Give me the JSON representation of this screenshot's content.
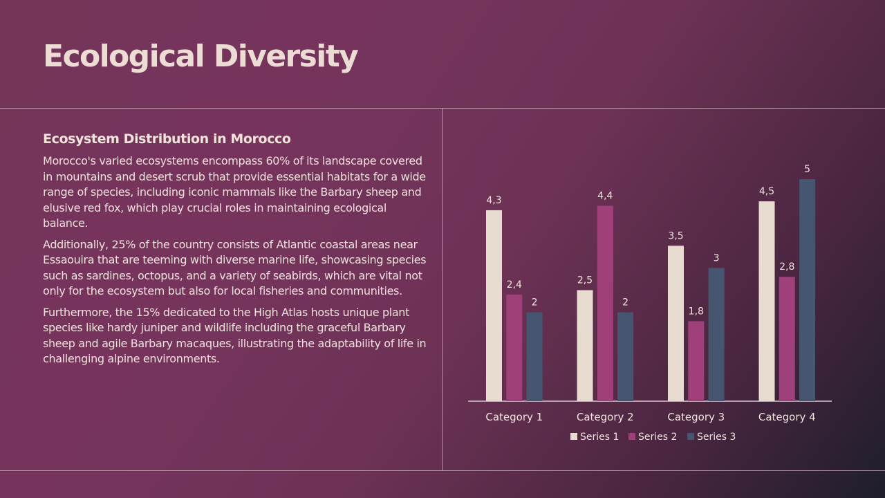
{
  "title": "Ecological Diversity",
  "content": {
    "heading": "Ecosystem Distribution in Morocco",
    "paragraphs": [
      "Morocco's varied ecosystems encompass 60% of its landscape covered in mountains and desert scrub that provide essential habitats for a wide range of species, including iconic mammals like the Barbary sheep and elusive red fox, which play crucial roles in maintaining ecological balance.",
      "Additionally, 25% of the country consists of Atlantic coastal areas near Essaouira that are teeming with diverse marine life, showcasing species such as sardines, octopus, and a variety of seabirds, which are vital not only for the ecosystem but also for local fisheries and communities.",
      "Furthermore, the 15% dedicated to the High Atlas hosts unique plant species like hardy juniper and wildlife including the graceful Barbary sheep and agile Barbary macaques, illustrating the adaptability of life in challenging alpine environments."
    ]
  },
  "chart_data": {
    "type": "bar",
    "categories": [
      "Category 1",
      "Category 2",
      "Category 3",
      "Category 4"
    ],
    "series": [
      {
        "name": "Series 1",
        "values": [
          4.3,
          2.5,
          3.5,
          4.5
        ],
        "labels": [
          "4,3",
          "2,5",
          "3,5",
          "4,5"
        ],
        "color": "#e8dcd0"
      },
      {
        "name": "Series 2",
        "values": [
          2.4,
          4.4,
          1.8,
          2.8
        ],
        "labels": [
          "2,4",
          "4,4",
          "1,8",
          "2,8"
        ],
        "color": "#a0407a"
      },
      {
        "name": "Series 3",
        "values": [
          2,
          2,
          3,
          5
        ],
        "labels": [
          "2",
          "2",
          "3",
          "5"
        ],
        "color": "#475670"
      }
    ],
    "ylim": [
      0,
      5
    ],
    "grid": false,
    "legend_position": "bottom",
    "axis_color": "#d8c8d0",
    "label_color": "#f0e4dc"
  }
}
